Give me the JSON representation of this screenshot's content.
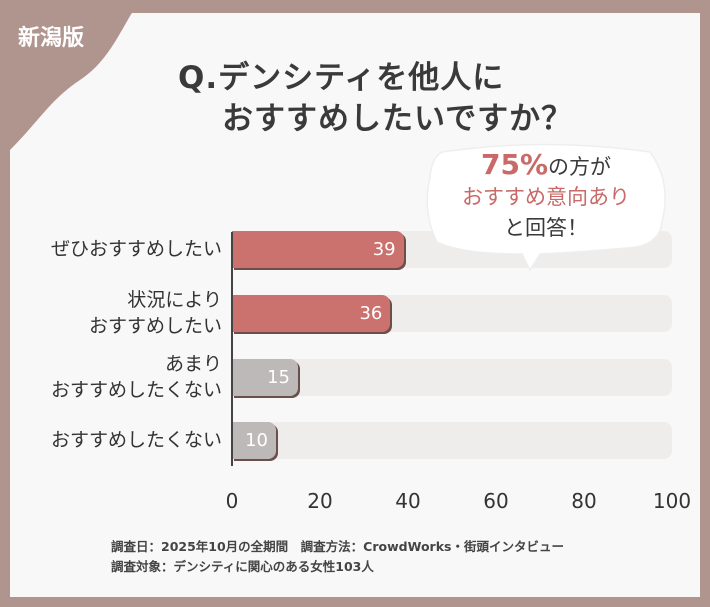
{
  "badge": "新潟版",
  "title_line1": "Q.デンシティを他人に",
  "title_line2": "おすすめしたいですか？",
  "callout": {
    "pct": "75%",
    "line1_rest": "の方が",
    "line2": "おすすめ意向あり",
    "line3": "と回答！"
  },
  "colors": {
    "frame": "#b0958e",
    "positive": "#cb716e",
    "negative": "#bdb9b8",
    "track": "#efecec"
  },
  "chart_data": {
    "type": "bar",
    "orientation": "horizontal",
    "categories": [
      "ぜひおすすめしたい",
      "状況により\nおすすめしたい",
      "あまり\nおすすめしたくない",
      "おすすめしたくない"
    ],
    "category_lines": [
      [
        "ぜひおすすめしたい"
      ],
      [
        "状況により",
        "おすすめしたい"
      ],
      [
        "あまり",
        "おすすめしたくない"
      ],
      [
        "おすすめしたくない"
      ]
    ],
    "values": [
      39,
      36,
      15,
      10
    ],
    "xlim": [
      0,
      100
    ],
    "xticks": [
      "0",
      "20",
      "40",
      "60",
      "80",
      "100"
    ],
    "grid": false
  },
  "notes": {
    "line1": "調査日：2025年10月の全期間　調査方法：CrowdWorks・街頭インタビュー",
    "line2": "調査対象：デンシティに関心のある女性103人"
  }
}
